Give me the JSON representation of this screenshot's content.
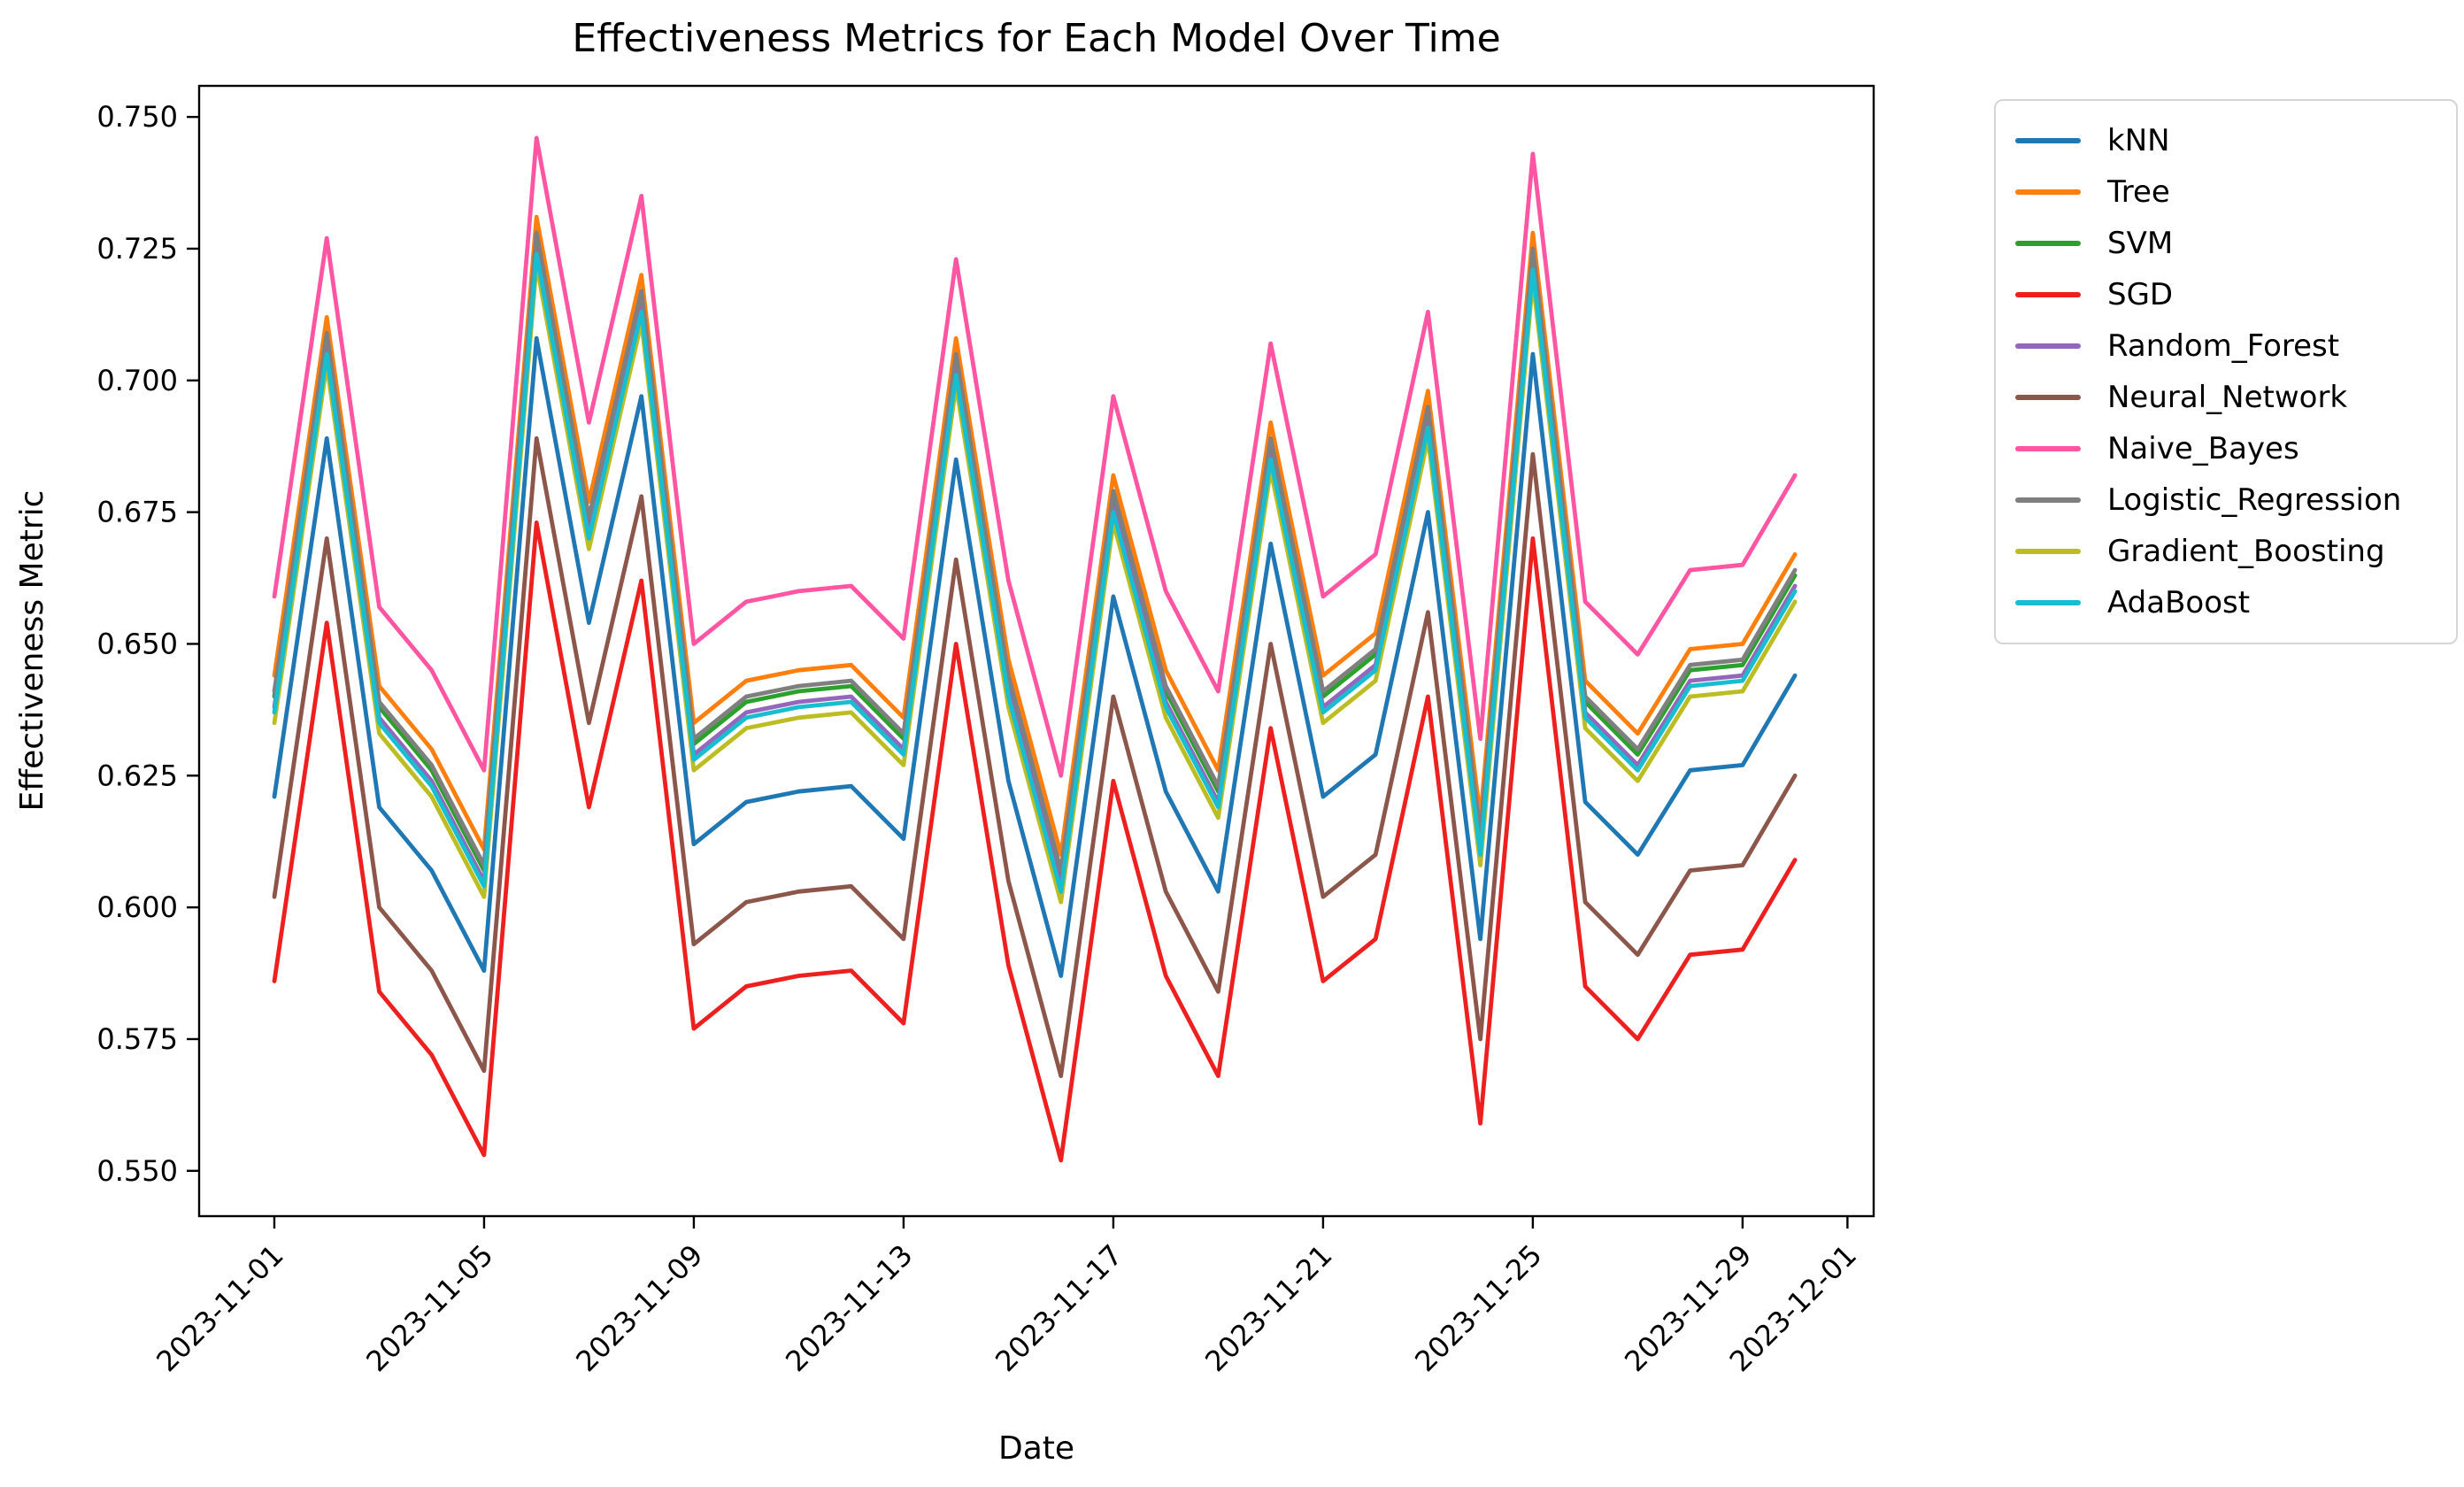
{
  "title": "Effectiveness Metrics for Each Model Over Time",
  "xlabel": "Date",
  "ylabel": "Effectiveness Metric",
  "chart_data": {
    "type": "line",
    "x": [
      "2023-11-01",
      "2023-11-02",
      "2023-11-03",
      "2023-11-04",
      "2023-11-05",
      "2023-11-06",
      "2023-11-07",
      "2023-11-08",
      "2023-11-09",
      "2023-11-10",
      "2023-11-11",
      "2023-11-12",
      "2023-11-13",
      "2023-11-14",
      "2023-11-15",
      "2023-11-16",
      "2023-11-17",
      "2023-11-18",
      "2023-11-19",
      "2023-11-20",
      "2023-11-21",
      "2023-11-22",
      "2023-11-23",
      "2023-11-24",
      "2023-11-25",
      "2023-11-26",
      "2023-11-27",
      "2023-11-28",
      "2023-11-29",
      "2023-11-30"
    ],
    "series": [
      {
        "name": "kNN",
        "color": "#1f77b4",
        "values": [
          0.621,
          0.689,
          0.619,
          0.607,
          0.588,
          0.708,
          0.654,
          0.697,
          0.612,
          0.62,
          0.622,
          0.623,
          0.613,
          0.685,
          0.624,
          0.587,
          0.659,
          0.622,
          0.603,
          0.669,
          0.621,
          0.629,
          0.675,
          0.594,
          0.705,
          0.62,
          0.61,
          0.626,
          0.627,
          0.644
        ]
      },
      {
        "name": "Tree",
        "color": "#ff7f0e",
        "values": [
          0.644,
          0.712,
          0.642,
          0.63,
          0.611,
          0.731,
          0.677,
          0.72,
          0.635,
          0.643,
          0.645,
          0.646,
          0.636,
          0.708,
          0.647,
          0.61,
          0.682,
          0.645,
          0.626,
          0.692,
          0.644,
          0.652,
          0.698,
          0.617,
          0.728,
          0.643,
          0.633,
          0.649,
          0.65,
          0.667
        ]
      },
      {
        "name": "SVM",
        "color": "#2ca02c",
        "values": [
          0.64,
          0.708,
          0.638,
          0.626,
          0.607,
          0.727,
          0.673,
          0.716,
          0.631,
          0.639,
          0.641,
          0.642,
          0.632,
          0.704,
          0.643,
          0.606,
          0.678,
          0.641,
          0.622,
          0.688,
          0.64,
          0.648,
          0.694,
          0.613,
          0.724,
          0.639,
          0.629,
          0.645,
          0.646,
          0.663
        ]
      },
      {
        "name": "SGD",
        "color": "#ee1f1f",
        "values": [
          0.586,
          0.654,
          0.584,
          0.572,
          0.553,
          0.673,
          0.619,
          0.662,
          0.577,
          0.585,
          0.587,
          0.588,
          0.578,
          0.65,
          0.589,
          0.552,
          0.624,
          0.587,
          0.568,
          0.634,
          0.586,
          0.594,
          0.64,
          0.559,
          0.67,
          0.585,
          0.575,
          0.591,
          0.592,
          0.609
        ]
      },
      {
        "name": "Random_Forest",
        "color": "#9467bd",
        "values": [
          0.638,
          0.706,
          0.636,
          0.624,
          0.605,
          0.725,
          0.671,
          0.714,
          0.629,
          0.637,
          0.639,
          0.64,
          0.63,
          0.702,
          0.641,
          0.604,
          0.676,
          0.639,
          0.62,
          0.686,
          0.638,
          0.646,
          0.692,
          0.611,
          0.722,
          0.637,
          0.627,
          0.643,
          0.644,
          0.661
        ]
      },
      {
        "name": "Neural_Network",
        "color": "#8c564b",
        "values": [
          0.602,
          0.67,
          0.6,
          0.588,
          0.569,
          0.689,
          0.635,
          0.678,
          0.593,
          0.601,
          0.603,
          0.604,
          0.594,
          0.666,
          0.605,
          0.568,
          0.64,
          0.603,
          0.584,
          0.65,
          0.602,
          0.61,
          0.656,
          0.575,
          0.686,
          0.601,
          0.591,
          0.607,
          0.608,
          0.625
        ]
      },
      {
        "name": "Naive_Bayes",
        "color": "#ff55a3",
        "values": [
          0.659,
          0.727,
          0.657,
          0.645,
          0.626,
          0.746,
          0.692,
          0.735,
          0.65,
          0.658,
          0.66,
          0.661,
          0.651,
          0.723,
          0.662,
          0.625,
          0.697,
          0.66,
          0.641,
          0.707,
          0.659,
          0.667,
          0.713,
          0.632,
          0.743,
          0.658,
          0.648,
          0.664,
          0.665,
          0.682
        ]
      },
      {
        "name": "Logistic_Regression",
        "color": "#7f7f7f",
        "values": [
          0.641,
          0.709,
          0.639,
          0.627,
          0.608,
          0.728,
          0.674,
          0.717,
          0.632,
          0.64,
          0.642,
          0.643,
          0.633,
          0.705,
          0.644,
          0.607,
          0.679,
          0.642,
          0.623,
          0.689,
          0.641,
          0.649,
          0.695,
          0.614,
          0.725,
          0.64,
          0.63,
          0.646,
          0.647,
          0.664
        ]
      },
      {
        "name": "Gradient_Boosting",
        "color": "#bcbd22",
        "values": [
          0.635,
          0.703,
          0.633,
          0.621,
          0.602,
          0.722,
          0.668,
          0.711,
          0.626,
          0.634,
          0.636,
          0.637,
          0.627,
          0.699,
          0.638,
          0.601,
          0.673,
          0.636,
          0.617,
          0.683,
          0.635,
          0.643,
          0.689,
          0.608,
          0.719,
          0.634,
          0.624,
          0.64,
          0.641,
          0.658
        ]
      },
      {
        "name": "AdaBoost",
        "color": "#17becf",
        "values": [
          0.637,
          0.705,
          0.635,
          0.623,
          0.604,
          0.724,
          0.67,
          0.713,
          0.628,
          0.636,
          0.638,
          0.639,
          0.629,
          0.701,
          0.64,
          0.603,
          0.675,
          0.638,
          0.619,
          0.685,
          0.637,
          0.645,
          0.691,
          0.61,
          0.721,
          0.636,
          0.626,
          0.642,
          0.643,
          0.66
        ]
      }
    ],
    "ylim": [
      0.5414,
      0.7559
    ],
    "yticks": [
      "0.550",
      "0.575",
      "0.600",
      "0.625",
      "0.650",
      "0.675",
      "0.700",
      "0.725",
      "0.750"
    ],
    "ytick_values": [
      0.55,
      0.575,
      0.6,
      0.625,
      0.65,
      0.675,
      0.7,
      0.725,
      0.75
    ],
    "xtick_labels": [
      "2023-11-01",
      "2023-11-05",
      "2023-11-09",
      "2023-11-13",
      "2023-11-17",
      "2023-11-21",
      "2023-11-25",
      "2023-11-29",
      "2023-12-01"
    ],
    "xtick_days": [
      0,
      4,
      8,
      12,
      16,
      20,
      24,
      28,
      30
    ],
    "xlim_days": [
      -1.434,
      30.5
    ],
    "grid": false,
    "legend_position": "outside-right"
  }
}
